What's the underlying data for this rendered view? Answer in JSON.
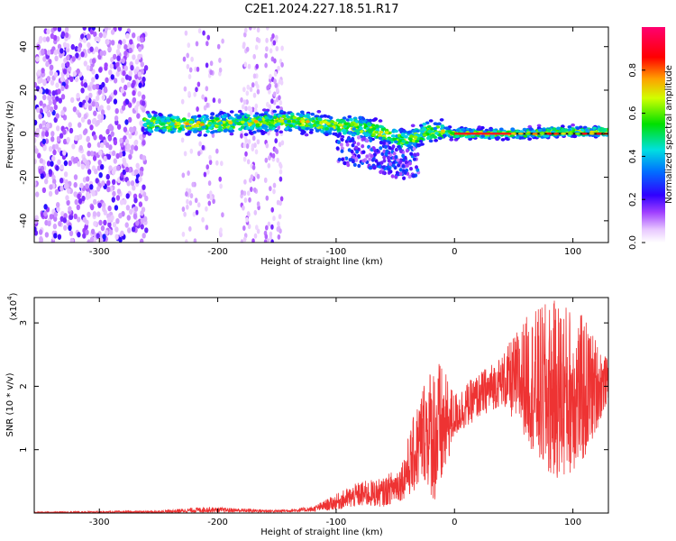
{
  "title": "C2E1.2024.227.18.51.R17",
  "chart_data": [
    {
      "type": "heatmap",
      "title": "C2E1.2024.227.18.51.R17",
      "xlabel": "Height of straight line (km)",
      "ylabel": "Frequency (Hz)",
      "xlim": [
        -355,
        130
      ],
      "ylim": [
        -50,
        49
      ],
      "xticks": [
        -300,
        -200,
        -100,
        0,
        100
      ],
      "yticks": [
        -40,
        -20,
        0,
        20,
        40
      ],
      "colorbar": {
        "label": "Normalized spectral amplitude",
        "ticks": [
          0.0,
          0.2,
          0.4,
          0.6,
          0.8
        ],
        "range": [
          0,
          1
        ],
        "colormap": "white-purple-blue-cyan-green-yellow-orange-red-magenta"
      },
      "features": {
        "noise_band_x": [
          -355,
          -260
        ],
        "noise_streaks_x": [
          [
            -230,
            -195
          ],
          [
            -180,
            -165
          ],
          [
            -160,
            -145
          ]
        ],
        "main_band_center_hz": [
          [
            -260,
            5
          ],
          [
            -220,
            4
          ],
          [
            -180,
            5
          ],
          [
            -140,
            6
          ],
          [
            -120,
            5
          ],
          [
            -100,
            4
          ],
          [
            -80,
            3
          ],
          [
            -60,
            0
          ],
          [
            -45,
            -3
          ],
          [
            -35,
            -2
          ],
          [
            -25,
            1
          ],
          [
            -10,
            1
          ],
          [
            0,
            0
          ],
          [
            30,
            0
          ],
          [
            60,
            0
          ],
          [
            90,
            1
          ],
          [
            130,
            1
          ]
        ],
        "high_amplitude_line_x": [
          0,
          50
        ],
        "high_amplitude_line_hz": 0
      }
    },
    {
      "type": "line",
      "title": "",
      "xlabel": "Height of straight line (km)",
      "ylabel": "SNR (10 * v/v)",
      "y_multiplier_label": "(x10",
      "y_multiplier_exp": "4",
      "xlim": [
        -355,
        130
      ],
      "ylim": [
        0,
        3.4
      ],
      "xticks": [
        -300,
        -200,
        -100,
        0,
        100
      ],
      "yticks": [
        1,
        2,
        3
      ],
      "series": [
        {
          "color": "#ee3333",
          "envelope": [
            {
              "x": -355,
              "lo": 0.0,
              "hi": 0.02
            },
            {
              "x": -250,
              "lo": 0.0,
              "hi": 0.04
            },
            {
              "x": -210,
              "lo": 0.01,
              "hi": 0.1
            },
            {
              "x": -150,
              "lo": 0.01,
              "hi": 0.05
            },
            {
              "x": -120,
              "lo": 0.02,
              "hi": 0.1
            },
            {
              "x": -100,
              "lo": 0.05,
              "hi": 0.3
            },
            {
              "x": -80,
              "lo": 0.1,
              "hi": 0.5
            },
            {
              "x": -60,
              "lo": 0.1,
              "hi": 0.55
            },
            {
              "x": -45,
              "lo": 0.2,
              "hi": 0.8
            },
            {
              "x": -35,
              "lo": 0.3,
              "hi": 1.5
            },
            {
              "x": -25,
              "lo": 0.5,
              "hi": 2.2
            },
            {
              "x": -15,
              "lo": 0.05,
              "hi": 2.5
            },
            {
              "x": 0,
              "lo": 1.2,
              "hi": 1.9
            },
            {
              "x": 20,
              "lo": 1.5,
              "hi": 2.2
            },
            {
              "x": 40,
              "lo": 1.7,
              "hi": 2.5
            },
            {
              "x": 60,
              "lo": 1.2,
              "hi": 3.1
            },
            {
              "x": 75,
              "lo": 0.6,
              "hi": 3.3
            },
            {
              "x": 90,
              "lo": 0.5,
              "hi": 3.4
            },
            {
              "x": 110,
              "lo": 0.8,
              "hi": 3.1
            },
            {
              "x": 130,
              "lo": 1.8,
              "hi": 2.4
            }
          ]
        }
      ]
    }
  ]
}
